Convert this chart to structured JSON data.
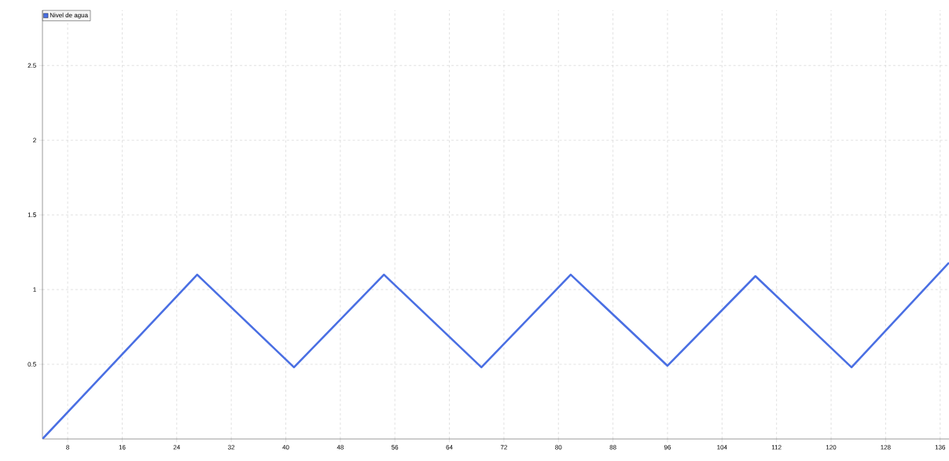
{
  "chart_data": {
    "type": "line",
    "x": [
      4.3,
      27,
      41.2,
      54.4,
      68.7,
      81.8,
      96,
      108.9,
      123,
      137.3
    ],
    "series": [
      {
        "name": "Nivel de agua",
        "color": "#4a6fe3",
        "values": [
          0,
          1.1,
          0.48,
          1.1,
          0.48,
          1.1,
          0.49,
          1.09,
          0.48,
          1.18
        ]
      }
    ],
    "xlim": [
      4.3,
      137.3
    ],
    "ylim": [
      0,
      2.87
    ],
    "xticks": [
      8,
      16,
      24,
      32,
      40,
      48,
      56,
      64,
      72,
      80,
      88,
      96,
      104,
      112,
      120,
      128,
      136
    ],
    "yticks": [
      0.5,
      1,
      1.5,
      2,
      2.5
    ],
    "grid": true,
    "legend": "top left",
    "line_style": "solid"
  }
}
